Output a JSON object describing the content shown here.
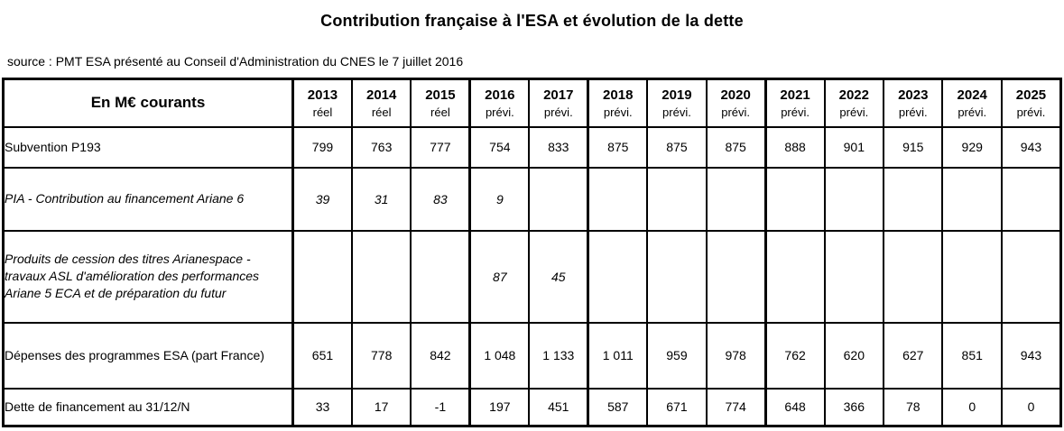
{
  "title": "Contribution française à l'ESA et évolution de la dette",
  "source_line": "source : PMT ESA présenté au Conseil d'Administration du CNES le 7 juillet 2016",
  "table": {
    "corner_label": "En M€ courants",
    "columns": [
      {
        "year": "2013",
        "kind": "réel"
      },
      {
        "year": "2014",
        "kind": "réel"
      },
      {
        "year": "2015",
        "kind": "réel"
      },
      {
        "year": "2016",
        "kind": "prévi."
      },
      {
        "year": "2017",
        "kind": "prévi."
      },
      {
        "year": "2018",
        "kind": "prévi."
      },
      {
        "year": "2019",
        "kind": "prévi."
      },
      {
        "year": "2020",
        "kind": "prévi."
      },
      {
        "year": "2021",
        "kind": "prévi."
      },
      {
        "year": "2022",
        "kind": "prévi."
      },
      {
        "year": "2023",
        "kind": "prévi."
      },
      {
        "year": "2024",
        "kind": "prévi."
      },
      {
        "year": "2025",
        "kind": "prévi."
      }
    ],
    "thick_right_year_indexes": [
      2,
      4,
      7
    ],
    "rows": [
      {
        "label": "Subvention P193",
        "italic": false,
        "values": [
          "799",
          "763",
          "777",
          "754",
          "833",
          "875",
          "875",
          "875",
          "888",
          "901",
          "915",
          "929",
          "943"
        ]
      },
      {
        "label": "PIA - Contribution au financement Ariane 6",
        "italic": true,
        "values": [
          "39",
          "31",
          "83",
          "9",
          "",
          "",
          "",
          "",
          "",
          "",
          "",
          "",
          ""
        ]
      },
      {
        "label": "Produits de cession des titres Arianespace  - travaux ASL d'amélioration des performances Ariane 5 ECA et de préparation du futur",
        "italic": true,
        "values": [
          "",
          "",
          "",
          "87",
          "45",
          "",
          "",
          "",
          "",
          "",
          "",
          "",
          ""
        ]
      },
      {
        "label": "Dépenses des programmes ESA (part France)",
        "italic": false,
        "values": [
          "651",
          "778",
          "842",
          "1 048",
          "1 133",
          "1 011",
          "959",
          "978",
          "762",
          "620",
          "627",
          "851",
          "943"
        ]
      },
      {
        "label": "Dette de financement au 31/12/N",
        "italic": false,
        "values": [
          "33",
          "17",
          "-1",
          "197",
          "451",
          "587",
          "671",
          "774",
          "648",
          "366",
          "78",
          "0",
          "0"
        ]
      }
    ]
  }
}
